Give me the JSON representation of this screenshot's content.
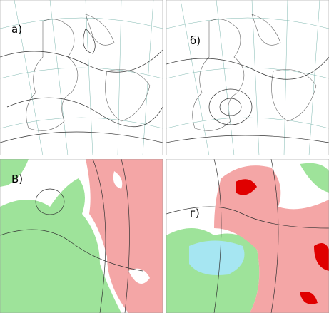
{
  "panels": [
    {
      "label": "а)"
    },
    {
      "label": "б)"
    },
    {
      "label": "В)"
    },
    {
      "label": "г)"
    }
  ]
}
